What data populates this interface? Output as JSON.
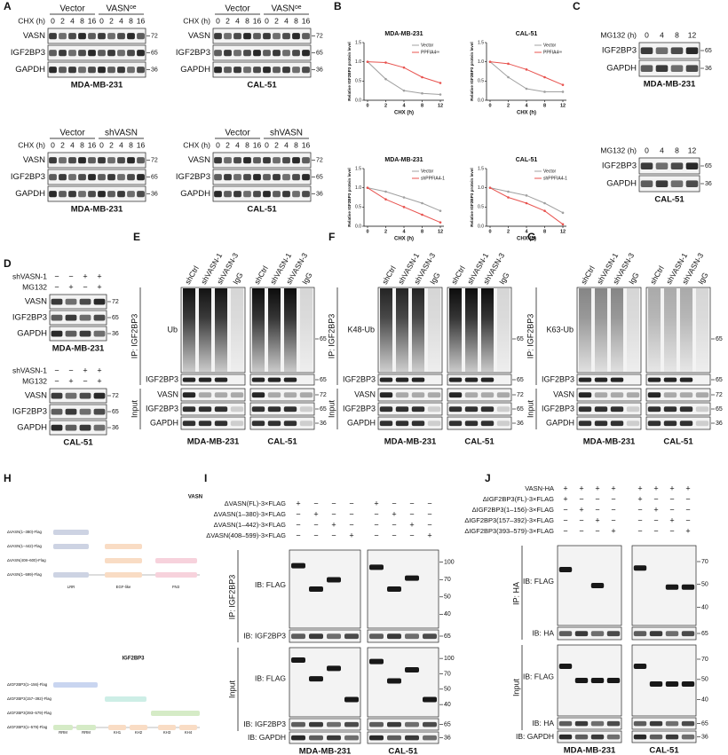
{
  "panel_labels": [
    "A",
    "B",
    "C",
    "D",
    "E",
    "F",
    "G",
    "H",
    "I",
    "J"
  ],
  "A": {
    "blots": [
      {
        "groups": [
          "Vector",
          "VASNᵒᵉ"
        ],
        "cond_label": "CHX (h)",
        "times": [
          0,
          2,
          4,
          8,
          16,
          0,
          2,
          4,
          8,
          16
        ],
        "rows": [
          "VASN",
          "IGF2BP3",
          "GAPDH"
        ],
        "markers": [
          72,
          65,
          36
        ],
        "cell": "MDA-MB-231"
      },
      {
        "groups": [
          "Vector",
          "VASNᵒᵉ"
        ],
        "cond_label": "CHX (h)",
        "times": [
          0,
          2,
          4,
          8,
          16,
          0,
          2,
          4,
          8,
          16
        ],
        "rows": [
          "VASN",
          "IGF2BP3",
          "GAPDH"
        ],
        "markers": [
          72,
          65,
          36
        ],
        "cell": "CAL-51"
      },
      {
        "groups": [
          "Vector",
          "shVASN"
        ],
        "cond_label": "CHX (h)",
        "times": [
          0,
          2,
          4,
          8,
          16,
          0,
          2,
          4,
          8,
          16
        ],
        "rows": [
          "VASN",
          "IGF2BP3",
          "GAPDH"
        ],
        "markers": [
          72,
          65,
          36
        ],
        "cell": "MDA-MB-231"
      },
      {
        "groups": [
          "Vector",
          "shVASN"
        ],
        "cond_label": "CHX (h)",
        "times": [
          0,
          2,
          4,
          8,
          16,
          0,
          2,
          4,
          8,
          16
        ],
        "rows": [
          "VASN",
          "IGF2BP3",
          "GAPDH"
        ],
        "markers": [
          72,
          65,
          36
        ],
        "cell": "CAL-51"
      }
    ]
  },
  "B": {
    "charts": [
      {
        "type": "line",
        "title": "MDA-MB-231",
        "x_label": "CHX (h)",
        "y_label": "Relative IGF2BP3 protein level",
        "categories": [
          0,
          2,
          4,
          8,
          12
        ],
        "series": [
          {
            "name": "Vector",
            "color": "#a0a0a0",
            "values": [
              1.0,
              0.55,
              0.25,
              0.18,
              0.15
            ]
          },
          {
            "name": "PPFIA4ᵒᵉ",
            "color": "#e8534f",
            "values": [
              1.0,
              0.98,
              0.85,
              0.6,
              0.45
            ]
          }
        ],
        "ylim": [
          0,
          1.5
        ],
        "yticks": [
          {
            "value": 0,
            "label": "0.0"
          },
          0.5,
          {
            "value": 1,
            "label": "1.0"
          },
          1.5
        ]
      },
      {
        "type": "line",
        "title": "CAL-51",
        "x_label": "CHX (h)",
        "y_label": "Relative IGF2BP3 protein level",
        "categories": [
          0,
          2,
          4,
          8,
          12
        ],
        "series": [
          {
            "name": "Vector",
            "color": "#a0a0a0",
            "values": [
              1.0,
              0.6,
              0.3,
              0.22,
              0.22
            ]
          },
          {
            "name": "PPFIA4ᵒᵉ",
            "color": "#e8534f",
            "values": [
              1.0,
              0.95,
              0.8,
              0.6,
              0.4
            ]
          }
        ],
        "ylim": [
          0,
          1.5
        ],
        "yticks": [
          {
            "value": 0,
            "label": "0.0"
          },
          0.5,
          {
            "value": 1,
            "label": "1.0"
          },
          1.5
        ]
      },
      {
        "type": "line",
        "title": "MDA-MB-231",
        "x_label": "CHX (h)",
        "y_label": "Relative IGF2BP3 protein level",
        "categories": [
          0,
          2,
          4,
          8,
          12
        ],
        "series": [
          {
            "name": "Vector",
            "color": "#a0a0a0",
            "values": [
              1.0,
              0.9,
              0.75,
              0.6,
              0.4
            ]
          },
          {
            "name": "shPPFIA4-1",
            "color": "#e8534f",
            "values": [
              1.0,
              0.7,
              0.5,
              0.3,
              0.1
            ]
          }
        ],
        "ylim": [
          0,
          1.5
        ],
        "yticks": [
          {
            "value": 0,
            "label": "0.0"
          },
          0.5,
          {
            "value": 1,
            "label": "1.0"
          },
          1.5
        ]
      },
      {
        "type": "line",
        "title": "CAL-51",
        "x_label": "CHX (h)",
        "y_label": "Relative IGF2BP3 protein level",
        "categories": [
          0,
          2,
          4,
          8,
          12
        ],
        "series": [
          {
            "name": "Vector",
            "color": "#a0a0a0",
            "values": [
              1.0,
              0.9,
              0.8,
              0.6,
              0.35
            ]
          },
          {
            "name": "shPPFIA4-1",
            "color": "#e8534f",
            "values": [
              1.0,
              0.75,
              0.6,
              0.4,
              0.05
            ]
          }
        ],
        "ylim": [
          0,
          1.5
        ],
        "yticks": [
          {
            "value": 0,
            "label": "0.0"
          },
          0.5,
          {
            "value": 1,
            "label": "1.0"
          },
          1.5
        ]
      }
    ]
  },
  "C": {
    "blots": [
      {
        "cond_label": "MG132 (h)",
        "times": [
          0,
          4,
          8,
          12
        ],
        "rows": [
          "IGF2BP3",
          "GAPDH"
        ],
        "markers": [
          65,
          36
        ],
        "cell": "MDA-MB-231"
      },
      {
        "cond_label": "MG132 (h)",
        "times": [
          0,
          4,
          8,
          12
        ],
        "rows": [
          "IGF2BP3",
          "GAPDH"
        ],
        "markers": [
          65,
          36
        ],
        "cell": "CAL-51"
      }
    ]
  },
  "D": {
    "blots": [
      {
        "conditions": [
          {
            "label": "shVASN-1",
            "signs": [
              "−",
              "−",
              "+",
              "+"
            ]
          },
          {
            "label": "MG132",
            "signs": [
              "−",
              "+",
              "−",
              "+"
            ]
          }
        ],
        "rows": [
          "VASN",
          "IGF2BP3",
          "GAPDH"
        ],
        "markers": [
          72,
          65,
          36
        ],
        "cell": "MDA-MB-231"
      },
      {
        "conditions": [
          {
            "label": "shVASN-1",
            "signs": [
              "−",
              "−",
              "+",
              "+"
            ]
          },
          {
            "label": "MG132",
            "signs": [
              "−",
              "+",
              "−",
              "+"
            ]
          }
        ],
        "rows": [
          "VASN",
          "IGF2BP3",
          "GAPDH"
        ],
        "markers": [
          72,
          65,
          36
        ],
        "cell": "CAL-51"
      }
    ]
  },
  "E": {
    "ip_label": "IP: IGF2BP3",
    "lanes": [
      "shCtrl",
      "shVASN-1",
      "shVASN-3",
      "IgG"
    ],
    "ub_label": "Ub",
    "ub_marker": 65,
    "ip_row": "IGF2BP3",
    "ip_marker": 65,
    "input_label": "Input",
    "input_rows": [
      "VASN",
      "IGF2BP3",
      "GAPDH"
    ],
    "input_markers": [
      72,
      65,
      36
    ],
    "cells": [
      "MDA-MB-231",
      "CAL-51"
    ]
  },
  "F": {
    "ip_label": "IP: IGF2BP3",
    "lanes": [
      "shCtrl",
      "shVASN-1",
      "shVASN-3",
      "IgG"
    ],
    "ub_label": "K48-Ub",
    "ub_marker": 65,
    "ip_row": "IGF2BP3",
    "ip_marker": 65,
    "input_label": "Input",
    "input_rows": [
      "VASN",
      "IGF2BP3",
      "GAPDH"
    ],
    "input_markers": [
      72,
      65,
      36
    ],
    "cells": [
      "MDA-MB-231",
      "CAL-51"
    ]
  },
  "G": {
    "ip_label": "IP: IGF2BP3",
    "lanes": [
      "shCtrl",
      "shVASN-1",
      "shVASN-3",
      "IgG"
    ],
    "ub_label": "K63-Ub",
    "ub_marker": 65,
    "ip_row": "IGF2BP3",
    "ip_marker": 65,
    "input_label": "Input",
    "input_rows": [
      "VASN",
      "IGF2BP3",
      "GAPDH"
    ],
    "input_markers": [
      72,
      65,
      36
    ],
    "cells": [
      "MDA-MB-231",
      "CAL-51"
    ]
  },
  "H": {
    "diagrams": [
      {
        "title": "VASN",
        "constructs": [
          "ΔVASN(1–380)-Flag",
          "ΔVASN(1–442)-Flag",
          "ΔVASN(408–600)-Flag",
          "ΔVASN(1–599)-Flag"
        ],
        "domains": [
          "LRR",
          "EGF-like",
          "FN3"
        ]
      },
      {
        "title": "IGF2BP3",
        "constructs": [
          "ΔIGF2BP3(1–156)-Flag",
          "ΔIGF2BP3(157–392)-Flag",
          "ΔIGF2BP3(393–579)-Flag",
          "ΔIGF2BP3(1–579)-Flag"
        ],
        "domains": [
          "RRM",
          "RRM",
          "KH1",
          "KH2",
          "KH3",
          "KH4"
        ]
      }
    ]
  },
  "I": {
    "constructs": [
      {
        "label": "ΔVASN(FL)-3×FLAG",
        "signs": [
          "+",
          "−",
          "−",
          "−",
          "+",
          "−",
          "−",
          "−"
        ]
      },
      {
        "label": "ΔVASN(1–380)-3×FLAG",
        "signs": [
          "−",
          "+",
          "−",
          "−",
          "−",
          "+",
          "−",
          "−"
        ]
      },
      {
        "label": "ΔVASN(1–442)-3×FLAG",
        "signs": [
          "−",
          "−",
          "+",
          "−",
          "−",
          "−",
          "+",
          "−"
        ]
      },
      {
        "label": "ΔVASN(408–599)-3×FLAG",
        "signs": [
          "−",
          "−",
          "−",
          "+",
          "−",
          "−",
          "−",
          "+"
        ]
      }
    ],
    "ip_label": "IP: IGF2BP3",
    "ip_blots": [
      {
        "label": "IB: FLAG",
        "markers": [
          100,
          70,
          50,
          40
        ]
      },
      {
        "label": "IB: IGF2BP3",
        "markers": [
          65
        ]
      }
    ],
    "input_label": "Input",
    "input_blots": [
      {
        "label": "IB: FLAG",
        "markers": [
          100,
          70,
          50,
          40
        ]
      },
      {
        "label": "IB: IGF2BP3",
        "markers": [
          65
        ]
      },
      {
        "label": "IB: GAPDH",
        "markers": [
          36
        ]
      }
    ],
    "cells": [
      "MDA-MB-231",
      "CAL-51"
    ]
  },
  "J": {
    "top_row": {
      "label": "VASN-HA",
      "signs": [
        "+",
        "+",
        "+",
        "+",
        "+",
        "+",
        "+",
        "+"
      ]
    },
    "constructs": [
      {
        "label": "ΔIGF2BP3(FL)-3×FLAG",
        "signs": [
          "+",
          "−",
          "−",
          "−",
          "+",
          "−",
          "−",
          "−"
        ]
      },
      {
        "label": "ΔIGF2BP3(1–156)-3×FLAG",
        "signs": [
          "−",
          "+",
          "−",
          "−",
          "−",
          "+",
          "−",
          "−"
        ]
      },
      {
        "label": "ΔIGF2BP3(157–392)-3×FLAG",
        "signs": [
          "−",
          "−",
          "+",
          "−",
          "−",
          "−",
          "+",
          "−"
        ]
      },
      {
        "label": "ΔIGF2BP3(393–579)-3×FLAG",
        "signs": [
          "−",
          "−",
          "−",
          "+",
          "−",
          "−",
          "−",
          "+"
        ]
      }
    ],
    "ip_label": "IP: HA",
    "ip_blots": [
      {
        "label": "IB: FLAG",
        "markers": [
          70,
          50,
          40
        ]
      },
      {
        "label": "IB: HA",
        "markers": [
          65
        ]
      }
    ],
    "input_label": "Input",
    "input_blots": [
      {
        "label": "IB: FLAG",
        "markers": [
          70,
          50,
          40
        ]
      },
      {
        "label": "IB: HA",
        "markers": [
          65
        ]
      },
      {
        "label": "IB: GAPDH",
        "markers": [
          36
        ]
      }
    ],
    "cells": [
      "MDA-MB-231",
      "CAL-51"
    ]
  }
}
